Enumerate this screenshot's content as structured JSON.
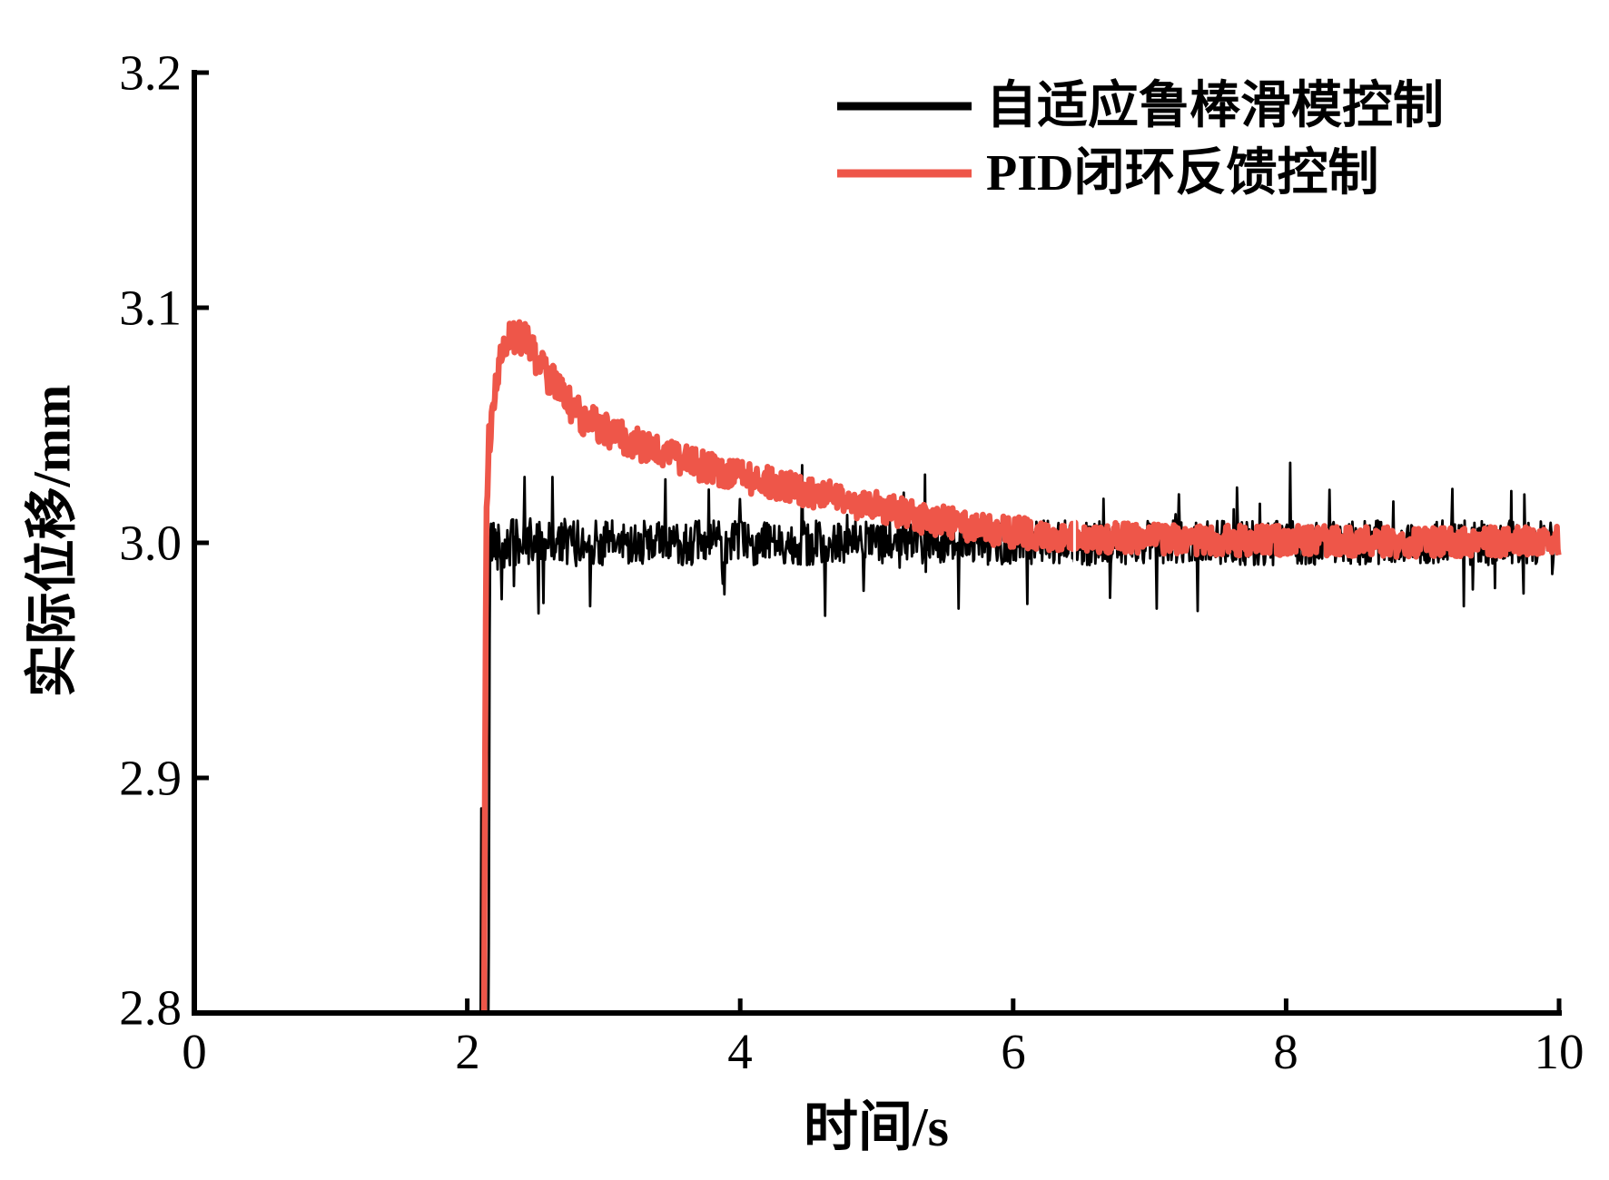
{
  "figure": {
    "background": "#ffffff",
    "frame_color": "#000000"
  },
  "chart_data": {
    "type": "line",
    "title": "",
    "xlabel": "时间/s",
    "ylabel": "实际位移/mm",
    "xlim": [
      0,
      10
    ],
    "ylim": [
      2.8,
      3.2
    ],
    "xticks": [
      0,
      2,
      4,
      6,
      8,
      10
    ],
    "xtick_labels": [
      "0",
      "2",
      "4",
      "6",
      "8",
      "10"
    ],
    "yticks": [
      2.8,
      2.9,
      3.0,
      3.1,
      3.2
    ],
    "ytick_labels": [
      "2.8",
      "2.9",
      "3.0",
      "3.1",
      "3.2"
    ],
    "grid": false,
    "legend": {
      "position": "upper-right-inside",
      "entries": [
        {
          "label": "自适应鲁棒滑模控制",
          "color": "#000000"
        },
        {
          "label": "PID闭环反馈控制",
          "color": "#ee5649"
        }
      ]
    },
    "series": [
      {
        "name": "自适应鲁棒滑模控制",
        "color": "#000000",
        "line_width": 2.8,
        "kind": "noisy-steady",
        "pre_spike": [
          [
            2.096,
            2.75
          ],
          [
            2.103,
            2.887
          ],
          [
            2.11,
            2.75
          ]
        ],
        "rise": [
          [
            2.15,
            2.75
          ],
          [
            2.158,
            2.83
          ],
          [
            2.164,
            2.96
          ],
          [
            2.168,
            3.002
          ]
        ],
        "baseline": 3.0,
        "t_end": 10.0,
        "sample_step": 0.006,
        "noise_core": [
          [
            2.17,
            0.0115
          ],
          [
            3.2,
            0.0095
          ],
          [
            10,
            0.0095
          ]
        ],
        "spike_rate": 0.03,
        "spike_extra": 0.015,
        "big_spikes": [
          [
            2.42,
            3.028
          ],
          [
            2.52,
            2.97
          ],
          [
            2.62,
            3.028
          ],
          [
            2.9,
            2.973
          ],
          [
            3.45,
            3.027
          ],
          [
            4.45,
            3.033
          ],
          [
            4.62,
            2.969
          ],
          [
            5.35,
            3.029
          ],
          [
            5.6,
            2.972
          ],
          [
            6.1,
            2.974
          ],
          [
            7.05,
            2.972
          ],
          [
            7.35,
            2.971
          ],
          [
            8.03,
            3.034
          ],
          [
            9.3,
            2.973
          ],
          [
            9.65,
            3.022
          ]
        ]
      },
      {
        "name": "PID闭环反馈控制",
        "color": "#ee5649",
        "line_width": 6.5,
        "kind": "trend-noise",
        "sample_step": 0.006,
        "trend": [
          [
            2.118,
            2.75
          ],
          [
            2.126,
            2.83
          ],
          [
            2.134,
            2.96
          ],
          [
            2.142,
            3.015
          ],
          [
            2.16,
            3.044
          ],
          [
            2.2,
            3.063
          ],
          [
            2.25,
            3.078
          ],
          [
            2.32,
            3.089
          ],
          [
            2.42,
            3.087
          ],
          [
            2.52,
            3.078
          ],
          [
            2.65,
            3.066
          ],
          [
            2.8,
            3.055
          ],
          [
            3.0,
            3.048
          ],
          [
            3.25,
            3.042
          ],
          [
            3.5,
            3.037
          ],
          [
            3.8,
            3.031
          ],
          [
            4.1,
            3.027
          ],
          [
            4.4,
            3.023
          ],
          [
            4.7,
            3.019
          ],
          [
            5.0,
            3.015
          ],
          [
            5.3,
            3.011
          ],
          [
            5.6,
            3.008
          ],
          [
            5.9,
            3.005
          ],
          [
            6.3,
            3.003
          ],
          [
            6.8,
            3.002
          ],
          [
            7.4,
            3.001
          ],
          [
            8.2,
            3.001
          ],
          [
            9.0,
            3.0
          ],
          [
            10.0,
            3.001
          ]
        ],
        "noise": [
          [
            2.2,
            0.008
          ],
          [
            3.4,
            0.0068
          ],
          [
            10,
            0.0062
          ]
        ]
      }
    ],
    "step_time_s": 2.13,
    "peak_value_mm": 3.09,
    "steady_value_mm": 3.0,
    "artifact_gap": {
      "t": 6.45,
      "from": 2.985,
      "to": 3.018
    }
  }
}
